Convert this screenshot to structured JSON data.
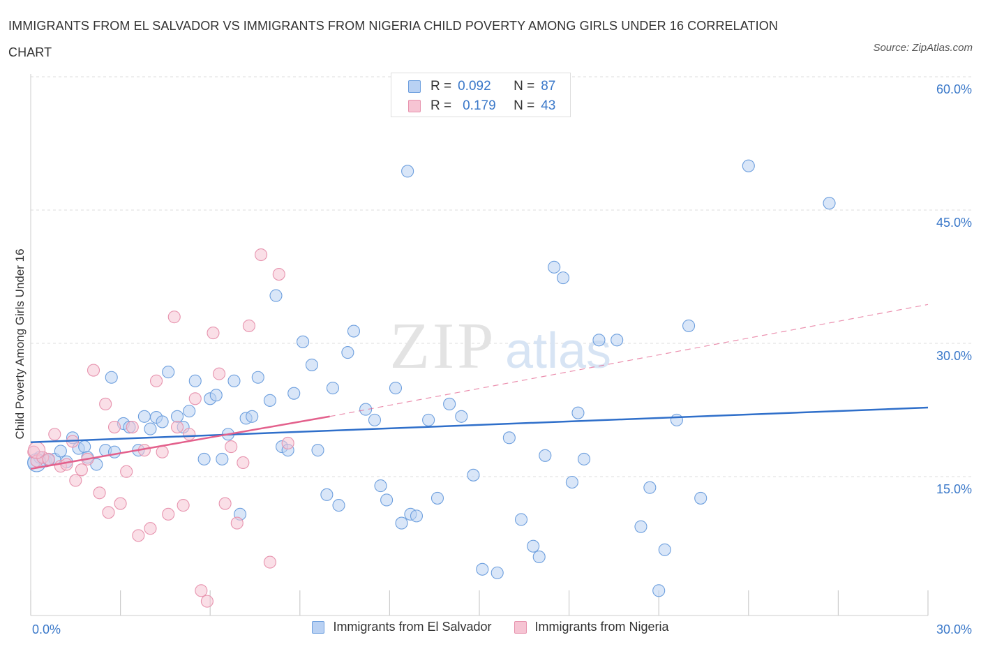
{
  "title": "IMMIGRANTS FROM EL SALVADOR VS IMMIGRANTS FROM NIGERIA CHILD POVERTY AMONG GIRLS UNDER 16 CORRELATION CHART",
  "source": "Source: ZipAtlas.com",
  "watermark": {
    "zip": "ZIP",
    "atlas": "atlas"
  },
  "legend": {
    "rows": [
      {
        "r_label": "R =",
        "r_value": "0.092",
        "n_label": "N =",
        "n_value": "87"
      },
      {
        "r_label": "R =",
        "r_value": "0.179",
        "n_label": "N =",
        "n_value": "43"
      }
    ]
  },
  "colors": {
    "blue_fill": "#b9d1f3",
    "blue_stroke": "#6d9fde",
    "blue_line": "#2f6fca",
    "pink_fill": "#f6c4d3",
    "pink_stroke": "#e793ae",
    "pink_line": "#e3608c",
    "grid": "#dddddd",
    "tick_text": "#3a78c9"
  },
  "chart_data": {
    "type": "scatter",
    "title": "IMMIGRANTS FROM EL SALVADOR VS IMMIGRANTS FROM NIGERIA CHILD POVERTY AMONG GIRLS UNDER 16 CORRELATION CHART",
    "xlabel": "",
    "ylabel": "Child Poverty Among Girls Under 16",
    "xlim": [
      0,
      30
    ],
    "ylim": [
      0,
      60
    ],
    "x_tick_labels": [
      "0.0%",
      "30.0%"
    ],
    "y_ticks": [
      15,
      30,
      45,
      60
    ],
    "y_tick_labels": [
      "15.0%",
      "30.0%",
      "45.0%",
      "60.0%"
    ],
    "grid": true,
    "series": [
      {
        "name": "Immigrants from El Salvador",
        "R": 0.092,
        "N": 87,
        "trend": {
          "x": [
            0,
            30
          ],
          "y": [
            19.5,
            23.4
          ]
        },
        "points": [
          [
            0.1,
            17.2
          ],
          [
            0.3,
            17.8
          ],
          [
            0.5,
            17.4
          ],
          [
            0.8,
            17.6
          ],
          [
            1.0,
            18.5
          ],
          [
            1.2,
            17.3
          ],
          [
            1.4,
            20.0
          ],
          [
            1.6,
            18.8
          ],
          [
            1.8,
            19.0
          ],
          [
            2.2,
            17.0
          ],
          [
            2.5,
            18.6
          ],
          [
            2.7,
            26.8
          ],
          [
            2.8,
            18.4
          ],
          [
            3.1,
            21.6
          ],
          [
            3.3,
            21.2
          ],
          [
            3.6,
            18.6
          ],
          [
            3.8,
            22.4
          ],
          [
            4.0,
            21.0
          ],
          [
            4.2,
            22.3
          ],
          [
            4.4,
            21.8
          ],
          [
            4.6,
            27.4
          ],
          [
            4.9,
            22.4
          ],
          [
            5.1,
            21.2
          ],
          [
            5.3,
            23.0
          ],
          [
            5.5,
            26.4
          ],
          [
            5.8,
            17.6
          ],
          [
            6.0,
            24.4
          ],
          [
            6.2,
            24.8
          ],
          [
            6.4,
            17.6
          ],
          [
            6.6,
            20.4
          ],
          [
            6.8,
            26.4
          ],
          [
            7.0,
            11.4
          ],
          [
            7.2,
            22.2
          ],
          [
            7.4,
            22.4
          ],
          [
            7.6,
            26.8
          ],
          [
            8.0,
            24.2
          ],
          [
            8.2,
            36.0
          ],
          [
            8.4,
            19.0
          ],
          [
            8.6,
            18.6
          ],
          [
            8.8,
            25.0
          ],
          [
            9.1,
            30.8
          ],
          [
            9.4,
            28.2
          ],
          [
            9.6,
            18.6
          ],
          [
            9.9,
            13.6
          ],
          [
            10.1,
            25.6
          ],
          [
            10.3,
            12.4
          ],
          [
            10.6,
            29.6
          ],
          [
            10.8,
            32.0
          ],
          [
            11.2,
            23.2
          ],
          [
            11.5,
            22.0
          ],
          [
            11.7,
            14.6
          ],
          [
            11.9,
            13.0
          ],
          [
            12.2,
            25.6
          ],
          [
            12.4,
            10.4
          ],
          [
            12.7,
            11.4
          ],
          [
            12.9,
            11.2
          ],
          [
            13.3,
            22.0
          ],
          [
            13.6,
            13.2
          ],
          [
            14.0,
            23.8
          ],
          [
            14.4,
            22.4
          ],
          [
            14.8,
            15.8
          ],
          [
            15.1,
            5.2
          ],
          [
            15.6,
            4.8
          ],
          [
            16.0,
            20.0
          ],
          [
            16.4,
            10.8
          ],
          [
            16.8,
            7.8
          ],
          [
            17.0,
            6.6
          ],
          [
            17.2,
            18.0
          ],
          [
            17.5,
            39.2
          ],
          [
            17.8,
            38.0
          ],
          [
            18.1,
            15.0
          ],
          [
            18.3,
            22.8
          ],
          [
            18.5,
            17.6
          ],
          [
            19.0,
            31.0
          ],
          [
            19.6,
            31.0
          ],
          [
            20.4,
            10.0
          ],
          [
            20.7,
            14.4
          ],
          [
            21.0,
            2.8
          ],
          [
            21.2,
            7.4
          ],
          [
            21.6,
            22.0
          ],
          [
            22.0,
            32.6
          ],
          [
            22.4,
            13.2
          ],
          [
            24.0,
            50.6
          ],
          [
            26.7,
            46.4
          ],
          [
            12.6,
            50.0
          ],
          [
            0.6,
            17.5
          ],
          [
            1.9,
            17.8
          ]
        ]
      },
      {
        "name": "Immigrants from Nigeria",
        "R": 0.179,
        "N": 43,
        "trend": {
          "x": [
            0,
            10
          ],
          "y": [
            16.5,
            22.4
          ]
        },
        "trend_dashed": {
          "x": [
            10,
            30
          ],
          "y": [
            22.4,
            35.0
          ]
        },
        "points": [
          [
            0.1,
            18.4
          ],
          [
            0.2,
            17.4
          ],
          [
            0.4,
            17.8
          ],
          [
            0.6,
            17.6
          ],
          [
            0.8,
            20.4
          ],
          [
            1.0,
            16.8
          ],
          [
            1.2,
            17.0
          ],
          [
            1.4,
            19.6
          ],
          [
            1.5,
            15.2
          ],
          [
            1.7,
            16.4
          ],
          [
            1.9,
            17.6
          ],
          [
            2.1,
            27.6
          ],
          [
            2.3,
            13.8
          ],
          [
            2.5,
            23.8
          ],
          [
            2.6,
            11.6
          ],
          [
            2.8,
            21.2
          ],
          [
            3.0,
            12.6
          ],
          [
            3.2,
            16.2
          ],
          [
            3.4,
            21.2
          ],
          [
            3.6,
            9.0
          ],
          [
            3.8,
            18.6
          ],
          [
            4.0,
            9.8
          ],
          [
            4.2,
            26.4
          ],
          [
            4.4,
            18.4
          ],
          [
            4.6,
            11.4
          ],
          [
            4.8,
            33.6
          ],
          [
            4.9,
            21.2
          ],
          [
            5.1,
            12.4
          ],
          [
            5.3,
            20.4
          ],
          [
            5.5,
            24.4
          ],
          [
            5.7,
            2.8
          ],
          [
            5.9,
            1.6
          ],
          [
            6.1,
            31.8
          ],
          [
            6.3,
            27.2
          ],
          [
            6.5,
            12.6
          ],
          [
            6.7,
            19.0
          ],
          [
            6.9,
            10.4
          ],
          [
            7.1,
            17.2
          ],
          [
            7.3,
            32.6
          ],
          [
            7.7,
            40.6
          ],
          [
            8.0,
            6.0
          ],
          [
            8.3,
            38.4
          ],
          [
            8.6,
            19.4
          ]
        ]
      }
    ]
  },
  "bottom_legend": [
    "Immigrants from El Salvador",
    "Immigrants from Nigeria"
  ]
}
